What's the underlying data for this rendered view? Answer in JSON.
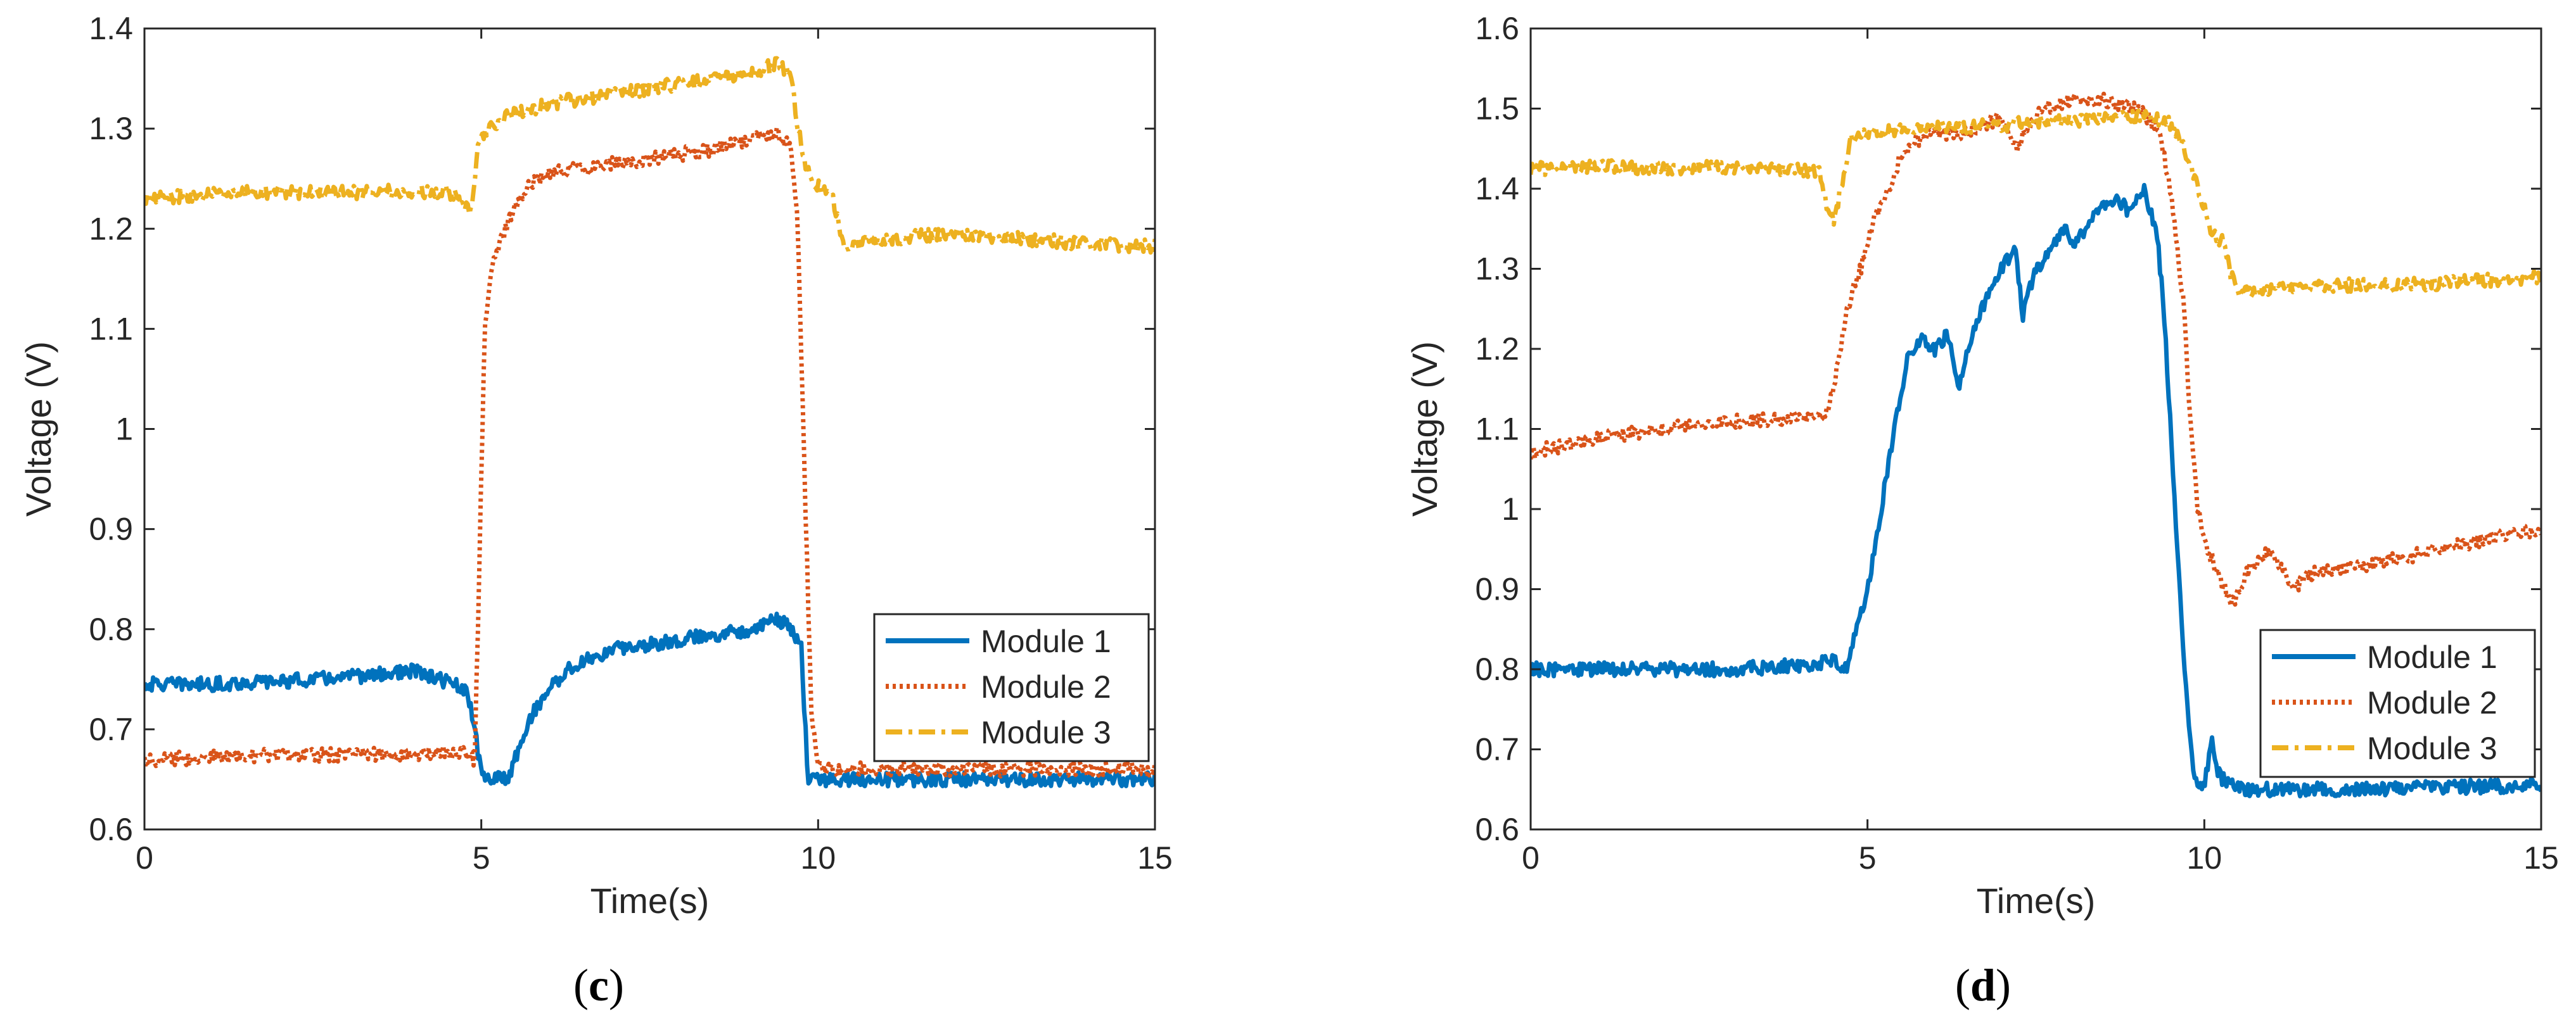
{
  "figure": {
    "panels": [
      {
        "label_open": "(",
        "label_letter": "c",
        "label_close": ")"
      },
      {
        "label_open": "(",
        "label_letter": "d",
        "label_close": ")"
      }
    ]
  },
  "colors": {
    "module_1": "#0072BD",
    "module_2": "#D95319",
    "module_3": "#EDB120",
    "axis": "#262626",
    "background": "#ffffff"
  },
  "chart_data": [
    {
      "type": "line",
      "panel": "c",
      "title": "",
      "xlabel": "Time(s)",
      "ylabel": "Voltage (V)",
      "xlim": [
        0,
        15
      ],
      "ylim": [
        0.6,
        1.4
      ],
      "xticks": [
        0,
        5,
        10,
        15
      ],
      "xtick_labels": [
        "0",
        "5",
        "10",
        "15"
      ],
      "yticks": [
        0.6,
        0.7,
        0.8,
        0.9,
        1.0,
        1.1,
        1.2,
        1.3,
        1.4
      ],
      "ytick_labels": [
        "0.6",
        "0.7",
        "0.8",
        "0.9",
        "1",
        "1.1",
        "1.2",
        "1.3",
        "1.4"
      ],
      "grid": false,
      "legend_position": "bottom-right",
      "series": [
        {
          "name": "Module 1",
          "style": "solid",
          "x": [
            0,
            1,
            2,
            3,
            4,
            4.6,
            4.8,
            4.9,
            5.0,
            5.2,
            5.4,
            5.6,
            5.8,
            6.0,
            6.3,
            6.6,
            7.0,
            7.5,
            8.0,
            8.5,
            9.0,
            9.4,
            9.6,
            9.75,
            9.85,
            10,
            12,
            15
          ],
          "y": [
            0.745,
            0.745,
            0.748,
            0.752,
            0.758,
            0.745,
            0.735,
            0.7,
            0.655,
            0.65,
            0.652,
            0.69,
            0.72,
            0.74,
            0.76,
            0.77,
            0.78,
            0.785,
            0.79,
            0.795,
            0.8,
            0.81,
            0.8,
            0.78,
            0.65,
            0.65,
            0.65,
            0.65
          ]
        },
        {
          "name": "Module 2",
          "style": "dotted",
          "x": [
            0,
            1,
            2,
            3,
            4,
            4.7,
            4.9,
            4.95,
            5.0,
            5.05,
            5.15,
            5.3,
            5.5,
            5.7,
            6.0,
            6.5,
            7.0,
            7.5,
            8.0,
            8.5,
            9.0,
            9.4,
            9.6,
            9.7,
            9.8,
            9.9,
            10.0,
            10.5,
            12,
            15
          ],
          "y": [
            0.67,
            0.672,
            0.674,
            0.675,
            0.676,
            0.678,
            0.67,
            0.8,
            0.95,
            1.1,
            1.16,
            1.19,
            1.22,
            1.245,
            1.255,
            1.26,
            1.265,
            1.27,
            1.275,
            1.28,
            1.29,
            1.295,
            1.28,
            1.2,
            0.95,
            0.72,
            0.66,
            0.66,
            0.66,
            0.66
          ]
        },
        {
          "name": "Module 3",
          "style": "dashdot",
          "x": [
            0,
            1,
            2,
            3,
            4,
            4.6,
            4.85,
            4.95,
            5.1,
            5.3,
            6,
            7,
            8,
            9,
            9.4,
            9.6,
            9.75,
            9.9,
            10.2,
            10.4,
            10.6,
            11,
            12,
            13,
            14,
            15
          ],
          "y": [
            1.23,
            1.235,
            1.237,
            1.236,
            1.238,
            1.235,
            1.215,
            1.28,
            1.3,
            1.31,
            1.325,
            1.335,
            1.345,
            1.355,
            1.365,
            1.35,
            1.28,
            1.245,
            1.235,
            1.18,
            1.185,
            1.19,
            1.195,
            1.19,
            1.185,
            1.183
          ]
        }
      ]
    },
    {
      "type": "line",
      "panel": "d",
      "title": "",
      "xlabel": "Time(s)",
      "ylabel": "Voltage (V)",
      "xlim": [
        0,
        15
      ],
      "ylim": [
        0.6,
        1.6
      ],
      "xticks": [
        0,
        5,
        10,
        15
      ],
      "xtick_labels": [
        "0",
        "5",
        "10",
        "15"
      ],
      "yticks": [
        0.6,
        0.7,
        0.8,
        0.9,
        1.0,
        1.1,
        1.2,
        1.3,
        1.4,
        1.5,
        1.6
      ],
      "ytick_labels": [
        "0.6",
        "0.7",
        "0.8",
        "0.9",
        "1",
        "1.1",
        "1.2",
        "1.3",
        "1.4",
        "1.5",
        "1.6"
      ],
      "grid": false,
      "legend_position": "bottom-right",
      "series": [
        {
          "name": "Module 1",
          "style": "solid",
          "x": [
            0,
            1,
            2,
            3,
            4,
            4.5,
            4.7,
            4.8,
            5.0,
            5.2,
            5.4,
            5.6,
            5.8,
            6.0,
            6.2,
            6.35,
            6.6,
            6.8,
            7.0,
            7.2,
            7.3,
            7.5,
            7.7,
            7.9,
            8.1,
            8.3,
            8.5,
            8.7,
            8.9,
            9.1,
            9.3,
            9.4,
            9.5,
            9.6,
            9.7,
            9.8,
            9.9,
            10.0,
            10.1,
            10.2,
            10.3,
            10.5,
            12,
            15
          ],
          "y": [
            0.8,
            0.8,
            0.8,
            0.8,
            0.805,
            0.81,
            0.8,
            0.84,
            0.9,
            1.0,
            1.1,
            1.19,
            1.21,
            1.2,
            1.22,
            1.15,
            1.23,
            1.27,
            1.3,
            1.33,
            1.24,
            1.3,
            1.32,
            1.35,
            1.33,
            1.36,
            1.38,
            1.39,
            1.37,
            1.4,
            1.34,
            1.25,
            1.1,
            0.95,
            0.8,
            0.7,
            0.65,
            0.65,
            0.715,
            0.67,
            0.66,
            0.65,
            0.65,
            0.655
          ]
        },
        {
          "name": "Module 2",
          "style": "dotted",
          "x": [
            0,
            1,
            2,
            3,
            4,
            4.4,
            4.5,
            4.7,
            4.9,
            5.1,
            5.3,
            5.5,
            5.7,
            6.0,
            6.5,
            7.0,
            7.2,
            7.4,
            7.6,
            8.0,
            8.5,
            9.0,
            9.3,
            9.5,
            9.7,
            9.8,
            9.9,
            10.0,
            10.2,
            10.4,
            10.7,
            11.0,
            11.3,
            11.6,
            12,
            13,
            14,
            15
          ],
          "y": [
            1.07,
            1.09,
            1.1,
            1.11,
            1.115,
            1.12,
            1.15,
            1.25,
            1.3,
            1.36,
            1.4,
            1.44,
            1.46,
            1.47,
            1.47,
            1.49,
            1.45,
            1.48,
            1.5,
            1.51,
            1.51,
            1.5,
            1.48,
            1.4,
            1.25,
            1.1,
            1.0,
            0.96,
            0.92,
            0.88,
            0.93,
            0.95,
            0.9,
            0.92,
            0.925,
            0.94,
            0.96,
            0.975
          ]
        },
        {
          "name": "Module 3",
          "style": "dashdot",
          "x": [
            0,
            1,
            2,
            3,
            4,
            4.3,
            4.4,
            4.5,
            4.6,
            4.75,
            5.0,
            6,
            7,
            8,
            8.8,
            9.2,
            9.5,
            9.7,
            9.9,
            10.1,
            10.3,
            10.4,
            10.5,
            11,
            12,
            13,
            14,
            15
          ],
          "y": [
            1.425,
            1.428,
            1.426,
            1.427,
            1.425,
            1.42,
            1.38,
            1.355,
            1.4,
            1.46,
            1.47,
            1.475,
            1.48,
            1.485,
            1.49,
            1.49,
            1.48,
            1.45,
            1.4,
            1.35,
            1.33,
            1.29,
            1.27,
            1.275,
            1.28,
            1.28,
            1.285,
            1.29
          ]
        }
      ]
    }
  ]
}
